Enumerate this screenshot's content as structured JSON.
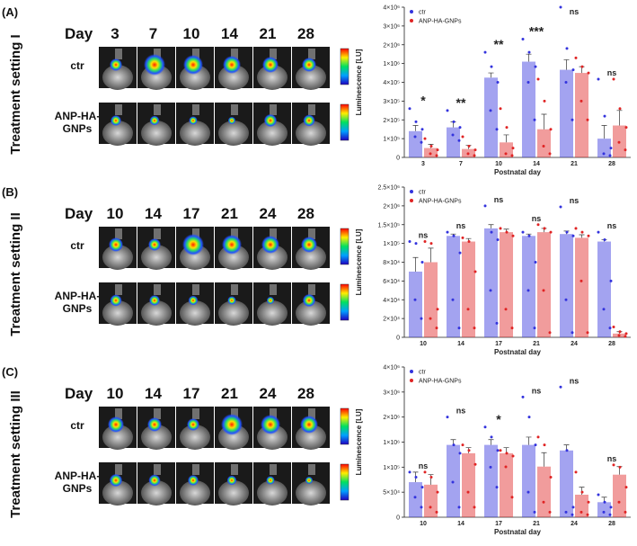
{
  "panels": [
    {
      "label": "(A)",
      "setting": "Treatment setting I",
      "day_label": "Day",
      "days": [
        "3",
        "7",
        "10",
        "14",
        "21",
        "28"
      ],
      "rows": [
        "ctr",
        "ANP-HA-GNPs"
      ]
    },
    {
      "label": "(B)",
      "setting": "Treatment setting II",
      "day_label": "Day",
      "days": [
        "10",
        "14",
        "17",
        "21",
        "24",
        "28"
      ],
      "rows": [
        "ctr",
        "ANP-HA-GNPs"
      ]
    },
    {
      "label": "(C)",
      "setting": "Treatment setting III",
      "day_label": "Day",
      "days": [
        "10",
        "14",
        "17",
        "21",
        "24",
        "28"
      ],
      "rows": [
        "ctr",
        "ANP-HA-GNPs"
      ]
    }
  ],
  "chart_data": [
    {
      "type": "bar",
      "y_label": "Luminescence [LU]",
      "x_label": "Postnatal day",
      "axis_break": true,
      "legend": "top-left",
      "categories": [
        "3",
        "7",
        "10",
        "14",
        "21",
        "28"
      ],
      "annotations": [
        "*",
        "**",
        "**",
        "***",
        "ns",
        "ns"
      ],
      "ylim": [
        0,
        4000000
      ],
      "yticks": [
        0,
        {
          "value": 100000,
          "label": "1×10⁵"
        },
        {
          "value": 200000,
          "label": "2×10⁵"
        },
        {
          "value": 300000,
          "label": "3×10⁵"
        },
        {
          "value": 400000,
          "label": "4×10⁵"
        },
        {
          "value": 1000000,
          "label": "1×10⁶"
        },
        {
          "value": 2000000,
          "label": "2×10⁶"
        },
        {
          "value": 3000000,
          "label": "3×10⁶"
        },
        {
          "value": 4000000,
          "label": "4×10⁶"
        }
      ],
      "series": [
        {
          "name": "ctr",
          "color": "#3333dd",
          "values": [
            140000,
            160000,
            550000,
            1100000,
            800000,
            100000
          ],
          "errors": [
            30000,
            30000,
            150000,
            400000,
            400000,
            70000
          ],
          "points": [
            [
              260000,
              190000,
              150000,
              110000,
              80000
            ],
            [
              250000,
              190000,
              160000,
              120000,
              90000
            ],
            [
              1600000,
              900000,
              400000,
              250000,
              150000
            ],
            [
              2300000,
              1600000,
              900000,
              400000,
              200000
            ],
            [
              4000000,
              1800000,
              800000,
              400000,
              200000
            ],
            [
              500000,
              220000,
              50000,
              20000,
              10000
            ]
          ]
        },
        {
          "name": "ANP-HA-GNPs",
          "color": "#e02424",
          "values": [
            50000,
            45000,
            80000,
            150000,
            700000,
            170000
          ],
          "errors": [
            20000,
            20000,
            40000,
            80000,
            200000,
            80000
          ],
          "points": [
            [
              100000,
              60000,
              40000,
              20000,
              10000
            ],
            [
              110000,
              60000,
              40000,
              20000,
              10000
            ],
            [
              260000,
              160000,
              50000,
              20000,
              10000
            ],
            [
              500000,
              300000,
              150000,
              60000,
              20000
            ],
            [
              1300000,
              900000,
              700000,
              300000,
              200000
            ],
            [
              500000,
              260000,
              160000,
              80000,
              40000
            ]
          ]
        }
      ]
    },
    {
      "type": "bar",
      "y_label": "Luminescence [LU]",
      "x_label": "Postnatal day",
      "axis_break": true,
      "legend": "top-left",
      "categories": [
        "10",
        "14",
        "17",
        "21",
        "24",
        "28"
      ],
      "annotations": [
        "ns",
        "ns",
        "ns",
        "ns",
        "ns",
        "ns"
      ],
      "ylim": [
        0,
        2500000
      ],
      "yticks": [
        0,
        {
          "value": 20000,
          "label": "2×10⁴"
        },
        {
          "value": 40000,
          "label": "4×10⁴"
        },
        {
          "value": 60000,
          "label": "6×10⁴"
        },
        {
          "value": 80000,
          "label": "8×10⁴"
        },
        {
          "value": 100000,
          "label": "1×10⁵"
        },
        {
          "value": 150000,
          "label": "1.5×10⁵"
        },
        {
          "value": 2000000,
          "label": "2×10⁶"
        },
        {
          "value": 2500000,
          "label": "2.5×10⁶"
        }
      ],
      "series": [
        {
          "name": "ctr",
          "color": "#3333dd",
          "values": [
            70000,
            120000,
            140000,
            120000,
            125000,
            105000
          ],
          "errors": [
            15000,
            5000,
            10000,
            5000,
            8000,
            5000
          ],
          "points": [
            [
              105000,
              100000,
              80000,
              40000,
              20000
            ],
            [
              130000,
              120000,
              90000,
              40000,
              10000
            ],
            [
              2000000,
              130000,
              110000,
              50000,
              15000
            ],
            [
              130000,
              120000,
              80000,
              50000,
              10000
            ],
            [
              1900000,
              130000,
              120000,
              40000,
              5000
            ],
            [
              130000,
              110000,
              60000,
              30000,
              10000
            ]
          ]
        },
        {
          "name": "ANP-HA-GNPs",
          "color": "#e02424",
          "values": [
            80000,
            105000,
            130000,
            130000,
            115000,
            4000
          ],
          "errors": [
            15000,
            8000,
            8000,
            10000,
            8000,
            2000
          ],
          "points": [
            [
              105000,
              100000,
              30000,
              20000,
              10000
            ],
            [
              115000,
              105000,
              70000,
              30000,
              10000
            ],
            [
              140000,
              130000,
              120000,
              30000,
              10000
            ],
            [
              150000,
              140000,
              130000,
              50000,
              5000
            ],
            [
              140000,
              130000,
              120000,
              60000,
              5000
            ],
            [
              11000,
              6000,
              4000,
              2000,
              1000
            ]
          ]
        }
      ]
    },
    {
      "type": "bar",
      "y_label": "Luminescence [LU]",
      "x_label": "Postnatal day",
      "axis_break": true,
      "legend": "top-left",
      "categories": [
        "10",
        "14",
        "17",
        "21",
        "24",
        "28"
      ],
      "annotations": [
        "ns",
        "ns",
        "*",
        "ns",
        "ns",
        "ns"
      ],
      "ylim": [
        0,
        4000000
      ],
      "yticks": [
        0,
        {
          "value": 50000,
          "label": "5×10⁴"
        },
        {
          "value": 100000,
          "label": "1×10⁵"
        },
        {
          "value": 1000000,
          "label": "1×10⁶"
        },
        {
          "value": 2000000,
          "label": "2×10⁶"
        },
        {
          "value": 3000000,
          "label": "3×10⁶"
        },
        {
          "value": 4000000,
          "label": "4×10⁶"
        }
      ],
      "series": [
        {
          "name": "ctr",
          "color": "#3333dd",
          "values": [
            70000,
            900000,
            900000,
            900000,
            700000,
            30000
          ],
          "errors": [
            20000,
            200000,
            200000,
            300000,
            200000,
            10000
          ],
          "points": [
            [
              90000,
              80000,
              60000,
              40000,
              20000
            ],
            [
              2000000,
              900000,
              600000,
              70000,
              20000
            ],
            [
              1600000,
              1200000,
              700000,
              100000,
              60000
            ],
            [
              2800000,
              2000000,
              900000,
              50000,
              10000
            ],
            [
              3200000,
              700000,
              20000,
              10000,
              5000
            ],
            [
              45000,
              30000,
              20000,
              10000,
              5000
            ]
          ]
        },
        {
          "name": "ANP-HA-GNPs",
          "color": "#e02424",
          "values": [
            65000,
            600000,
            600000,
            120000,
            45000,
            85000
          ],
          "errors": [
            20000,
            200000,
            200000,
            500000,
            15000,
            35000
          ],
          "points": [
            [
              90000,
              80000,
              50000,
              20000,
              10000
            ],
            [
              900000,
              700000,
              200000,
              50000,
              20000
            ],
            [
              700000,
              600000,
              500000,
              110000,
              40000
            ],
            [
              1200000,
              900000,
              80000,
              30000,
              10000
            ],
            [
              90000,
              50000,
              30000,
              10000,
              5000
            ],
            [
              180000,
              100000,
              60000,
              30000,
              10000
            ]
          ]
        }
      ]
    }
  ]
}
